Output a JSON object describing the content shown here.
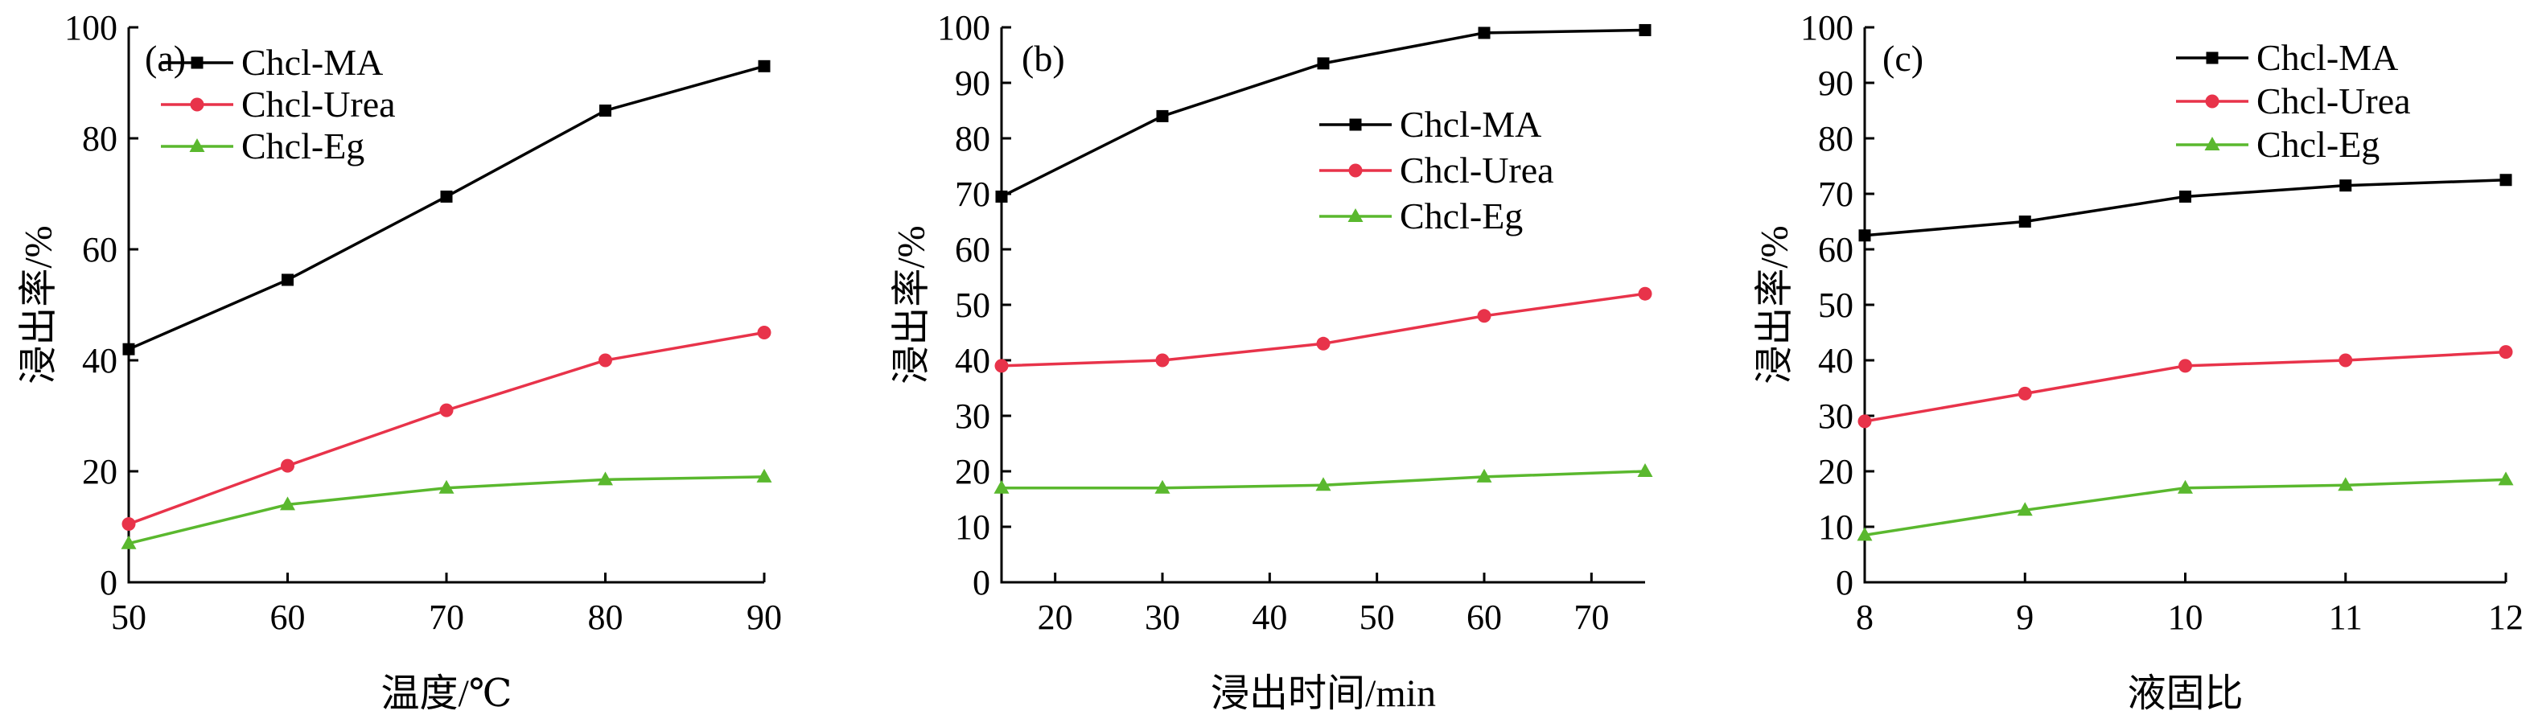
{
  "chart_data": [
    {
      "type": "line",
      "panel_label": "(a)",
      "xlabel": "温度/℃",
      "ylabel": "浸出率/%",
      "x": [
        50,
        60,
        70,
        80,
        90
      ],
      "xticks": [
        50,
        60,
        70,
        80,
        90
      ],
      "xlim": [
        50,
        90
      ],
      "yticks": [
        0,
        20,
        40,
        60,
        80,
        100
      ],
      "ylim": [
        0,
        100
      ],
      "legend_position": "top-left",
      "series": [
        {
          "name": "Chcl-MA",
          "values": [
            42,
            54.5,
            69.5,
            85,
            93
          ],
          "color": "#000000",
          "marker": "square"
        },
        {
          "name": "Chcl-Urea",
          "values": [
            10.5,
            21,
            31,
            40,
            45
          ],
          "color": "#e8334a",
          "marker": "circle"
        },
        {
          "name": "Chcl-Eg",
          "values": [
            7,
            14,
            17,
            18.5,
            19
          ],
          "color": "#5ab82e",
          "marker": "triangle"
        }
      ]
    },
    {
      "type": "line",
      "panel_label": "(b)",
      "xlabel": "浸出时间/min",
      "ylabel": "浸出率/%",
      "x": [
        15,
        30,
        45,
        60,
        75
      ],
      "xticks": [
        20,
        30,
        40,
        50,
        60,
        70
      ],
      "xlim": [
        15,
        75
      ],
      "yticks": [
        0,
        10,
        20,
        30,
        40,
        50,
        60,
        70,
        80,
        90,
        100
      ],
      "ylim": [
        0,
        100
      ],
      "legend_position": "top-right",
      "series": [
        {
          "name": "Chcl-MA",
          "values": [
            69.5,
            84,
            93.5,
            99,
            99.5
          ],
          "color": "#000000",
          "marker": "square"
        },
        {
          "name": "Chcl-Urea",
          "values": [
            39,
            40,
            43,
            48,
            52
          ],
          "color": "#e8334a",
          "marker": "circle"
        },
        {
          "name": "Chcl-Eg",
          "values": [
            17,
            17,
            17.5,
            19,
            20
          ],
          "color": "#5ab82e",
          "marker": "triangle"
        }
      ]
    },
    {
      "type": "line",
      "panel_label": "(c)",
      "xlabel": "液固比",
      "ylabel": "浸出率/%",
      "x": [
        8,
        9,
        10,
        11,
        12
      ],
      "xticks": [
        8,
        9,
        10,
        11,
        12
      ],
      "xlim": [
        8,
        12
      ],
      "yticks": [
        0,
        10,
        20,
        30,
        40,
        50,
        60,
        70,
        80,
        90,
        100
      ],
      "ylim": [
        0,
        100
      ],
      "legend_position": "top-right",
      "series": [
        {
          "name": "Chcl-MA",
          "values": [
            62.5,
            65,
            69.5,
            71.5,
            72.5
          ],
          "color": "#000000",
          "marker": "square"
        },
        {
          "name": "Chcl-Urea",
          "values": [
            29,
            34,
            39,
            40,
            41.5
          ],
          "color": "#e8334a",
          "marker": "circle"
        },
        {
          "name": "Chcl-Eg",
          "values": [
            8.5,
            13,
            17,
            17.5,
            18.5
          ],
          "color": "#5ab82e",
          "marker": "triangle"
        }
      ]
    }
  ]
}
